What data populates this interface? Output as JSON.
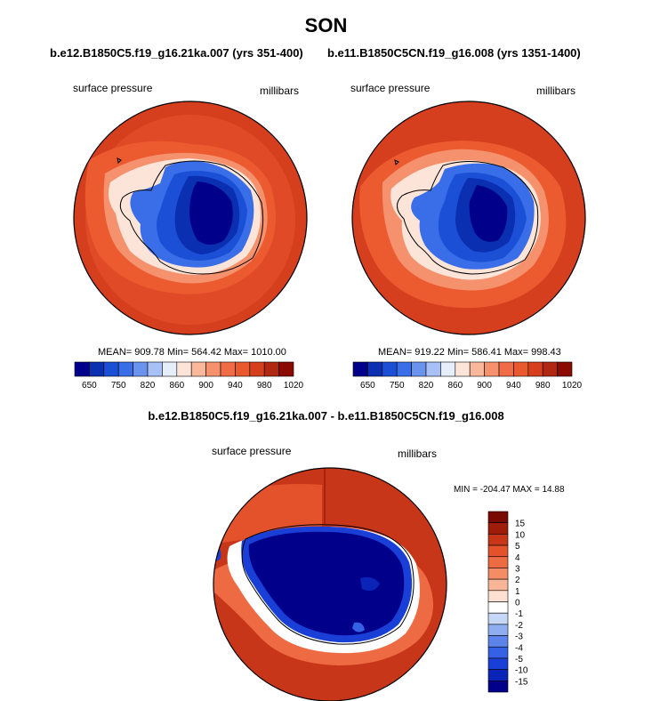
{
  "season": "SON",
  "subtitle_left": "b.e12.B1850C5.f19_g16.21ka.007 (yrs 351-400)",
  "subtitle_right": "b.e11.B1850C5CN.f19_g16.008 (yrs 1351-1400)",
  "diff_title": "b.e12.B1850C5.f19_g16.21ka.007 - b.e11.B1850C5CN.f19_g16.008",
  "panels": [
    {
      "variable": "surface pressure",
      "units": "millibars",
      "stats": "MEAN= 909.78  Min= 564.42  Max= 1010.00"
    },
    {
      "variable": "surface pressure",
      "units": "millibars",
      "stats": "MEAN= 919.22  Min= 586.41  Max= 998.43"
    }
  ],
  "diff_panel": {
    "variable": "surface pressure",
    "units": "millibars",
    "stats": "MIN = -204.47 MAX =  14.88"
  },
  "abs_colorbar": {
    "colors": [
      "#00008b",
      "#0a2fb0",
      "#1a4fd6",
      "#3a6ee8",
      "#6a93ee",
      "#a7c0f5",
      "#e6eefb",
      "#fde4d8",
      "#f9b89c",
      "#f5916c",
      "#f06c46",
      "#e85a2e",
      "#d63f1e",
      "#b02812",
      "#8b0a00"
    ],
    "labels": [
      "650",
      "750",
      "820",
      "860",
      "900",
      "940",
      "980",
      "1020"
    ]
  },
  "diff_colorbar": {
    "colors": [
      "#00008b",
      "#0a24b8",
      "#1a3fd6",
      "#3561e6",
      "#5c84ea",
      "#8eaef0",
      "#c7d7f7",
      "#ffffff",
      "#fde0d2",
      "#f9b597",
      "#f48c66",
      "#ee6a42",
      "#e4522c",
      "#c8361a",
      "#a01c0a",
      "#7a0a00"
    ],
    "labels": [
      "15",
      "10",
      "5",
      "4",
      "3",
      "2",
      "1",
      "0",
      "-1",
      "-2",
      "-3",
      "-4",
      "-5",
      "-10",
      "-15"
    ]
  }
}
